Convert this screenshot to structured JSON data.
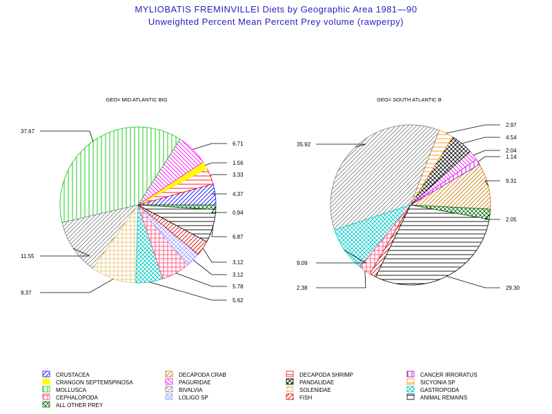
{
  "title": "MYLIOBATIS FREMINVILLEI Diets by Geographic Area 1981—90",
  "subtitle": "Unweighted Percent Mean Percent Prey  volume (rawperpy)",
  "chart_data": [
    {
      "type": "pie",
      "title": "GEO= MID ATLANTIC BIG",
      "slices": [
        {
          "category": "CRUSTACEA",
          "value": 4.37
        },
        {
          "category": "DECAPODA SHRIMP",
          "value": 3.33
        },
        {
          "category": "CRANGON SEPTEMSPINOSA",
          "value": 1.56
        },
        {
          "category": "PAGURIDAE",
          "value": 6.71
        },
        {
          "category": "MOLLUSCA",
          "value": 37.67
        },
        {
          "category": "BIVALVIA",
          "value": 11.55
        },
        {
          "category": "SOLENIDAE",
          "value": 9.37
        },
        {
          "category": "GASTROPODA",
          "value": 5.62
        },
        {
          "category": "CEPHALOPODA",
          "value": 5.78
        },
        {
          "category": "LOLIGO SP",
          "value": 3.12
        },
        {
          "category": "FISH",
          "value": 3.12
        },
        {
          "category": "ANIMAL REMAINS",
          "value": 6.87
        },
        {
          "category": "ALL OTHER PREY",
          "value": 0.94
        }
      ]
    },
    {
      "type": "pie",
      "title": "GEO= SOUTH ATLANTIC B",
      "slices": [
        {
          "category": "DECAPODA CRAB",
          "value": 9.31
        },
        {
          "category": "CANCER IRRORATUS",
          "value": 1.14
        },
        {
          "category": "PAGURIDAE",
          "value": 2.04
        },
        {
          "category": "PANDALIDAE",
          "value": 4.54
        },
        {
          "category": "SICYONIA SP",
          "value": 2.97
        },
        {
          "category": "BIVALVIA",
          "value": 35.92
        },
        {
          "category": "GASTROPODA",
          "value": 9.09
        },
        {
          "category": "CEPHALOPODA",
          "value": 2.38
        },
        {
          "category": "FISH",
          "value": 1.3
        },
        {
          "category": "ANIMAL REMAINS",
          "value": 29.3
        },
        {
          "category": "ALL OTHER PREY",
          "value": 2.05
        }
      ],
      "label_values": [
        "2.97",
        "4.54",
        "2.04",
        "1.14",
        "9.31",
        "2.05",
        "29.30",
        "2.38",
        "9.09",
        "35.92"
      ]
    }
  ],
  "legend": [
    {
      "label": "CRUSTACEA",
      "color": "#0000ff",
      "pattern": "hatch-rising"
    },
    {
      "label": "DECAPODA CRAB",
      "color": "#c87800",
      "pattern": "hatch-rising"
    },
    {
      "label": "DECAPODA SHRIMP",
      "color": "#ff0000",
      "pattern": "hatch-horizontal"
    },
    {
      "label": "CANCER IRRORATUS",
      "color": "#a000c8",
      "pattern": "hatch-vertical"
    },
    {
      "label": "CRANGON SEPTEMSPINOSA",
      "color": "#ffff00",
      "pattern": "solid"
    },
    {
      "label": "PAGURIDAE",
      "color": "#ff00ff",
      "pattern": "hatch-falling"
    },
    {
      "label": "PANDALIDAE",
      "color": "#000000",
      "pattern": "crosshatch-diag"
    },
    {
      "label": "SICYONIA SP",
      "color": "#ff8c00",
      "pattern": "hatch-horizontal"
    },
    {
      "label": "MOLLUSCA",
      "color": "#00c800",
      "pattern": "hatch-vertical"
    },
    {
      "label": "BIVALVIA",
      "color": "#808080",
      "pattern": "hatch-rising"
    },
    {
      "label": "SOLENIDAE",
      "color": "#e6c878",
      "pattern": "crosshatch"
    },
    {
      "label": "GASTROPODA",
      "color": "#00c8c8",
      "pattern": "crosshatch-diag"
    },
    {
      "label": "CEPHALOPODA",
      "color": "#ff4878",
      "pattern": "crosshatch"
    },
    {
      "label": "LOLIGO SP",
      "color": "#a0a0ff",
      "pattern": "crosshatch-diag"
    },
    {
      "label": "FISH",
      "color": "#c80000",
      "pattern": "hatch-rising"
    },
    {
      "label": "ANIMAL REMAINS",
      "color": "#000000",
      "pattern": "hatch-horizontal"
    },
    {
      "label": "ALL OTHER PREY",
      "color": "#006400",
      "pattern": "crosshatch-diag"
    }
  ]
}
